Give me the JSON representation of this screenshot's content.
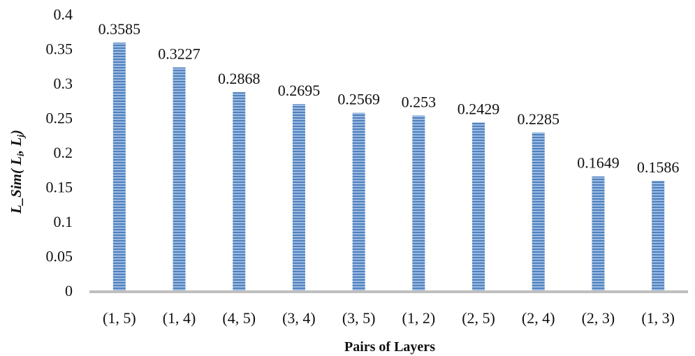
{
  "chart_data": {
    "type": "bar",
    "categories": [
      "(1, 5)",
      "(1, 4)",
      "(4, 5)",
      "(3, 4)",
      "(3, 5)",
      "(1, 2)",
      "(2, 5)",
      "(2, 4)",
      "(2, 3)",
      "(1, 3)"
    ],
    "values": [
      0.3585,
      0.3227,
      0.2868,
      0.2695,
      0.2569,
      0.253,
      0.2429,
      0.2285,
      0.1649,
      0.1586
    ],
    "data_labels": [
      "0.3585",
      "0.3227",
      "0.2868",
      "0.2695",
      "0.2569",
      "0.253",
      "0.2429",
      "0.2285",
      "0.1649",
      "0.1586"
    ],
    "yticks": [
      "0",
      "0.05",
      "0.1",
      "0.15",
      "0.2",
      "0.25",
      "0.3",
      "0.35",
      "0.4"
    ],
    "ylim": [
      0,
      0.4
    ],
    "xlabel": "Pairs of Layers",
    "ylabel": {
      "prefix": "L_Sim( L",
      "sub_i": "i",
      "sep": ", L",
      "sub_j": "j",
      "suffix": ")"
    },
    "grid": false,
    "legend": "none",
    "colors": {
      "bar": "#4f81bd",
      "bar_stripe": "#9dbbe3",
      "axis": "#bfbfbf"
    }
  }
}
